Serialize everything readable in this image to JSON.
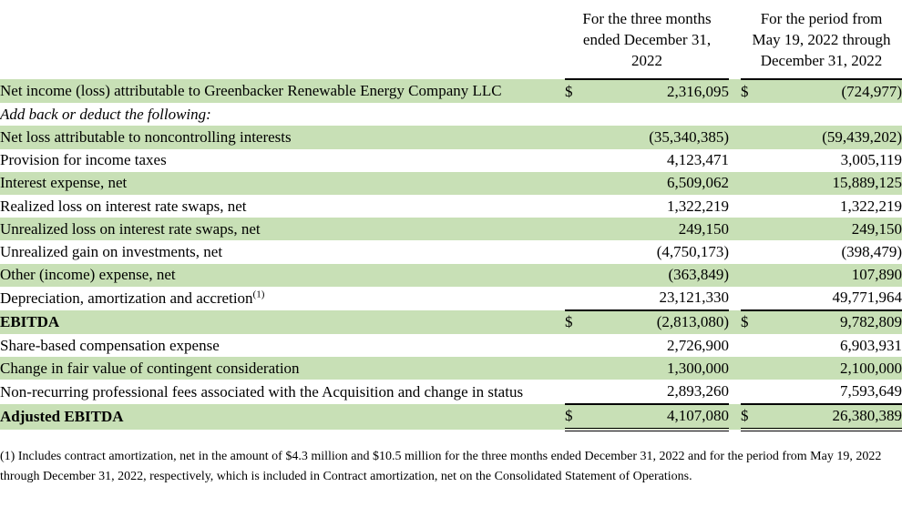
{
  "colors": {
    "row_shade": "#c8e0b6",
    "rule": "#000000",
    "text": "#000000",
    "background": "#ffffff"
  },
  "table": {
    "column_headers": [
      {
        "lines": [
          "For the three months",
          "ended December 31,",
          "2022"
        ]
      },
      {
        "lines": [
          "For the period from",
          "May 19, 2022 through",
          "December 31, 2022"
        ]
      }
    ],
    "rows": [
      {
        "label": "Net income (loss) attributable to Greenbacker Renewable Energy Company LLC",
        "dollar1": "$",
        "value1": "2,316,095",
        "dollar2": "$",
        "value2": "(724,977)",
        "shade": true
      },
      {
        "label": "Add back or deduct the following:",
        "dollar1": "",
        "value1": "",
        "dollar2": "",
        "value2": "",
        "italic": true
      },
      {
        "label": "Net loss attributable to noncontrolling interests",
        "dollar1": "",
        "value1": "(35,340,385)",
        "dollar2": "",
        "value2": "(59,439,202)",
        "shade": true
      },
      {
        "label": "Provision for income taxes",
        "dollar1": "",
        "value1": "4,123,471",
        "dollar2": "",
        "value2": "3,005,119"
      },
      {
        "label": "Interest expense, net",
        "dollar1": "",
        "value1": "6,509,062",
        "dollar2": "",
        "value2": "15,889,125",
        "shade": true
      },
      {
        "label": "Realized loss on interest rate swaps, net",
        "dollar1": "",
        "value1": "1,322,219",
        "dollar2": "",
        "value2": "1,322,219"
      },
      {
        "label": "Unrealized loss on interest rate swaps, net",
        "dollar1": "",
        "value1": "249,150",
        "dollar2": "",
        "value2": "249,150",
        "shade": true
      },
      {
        "label": "Unrealized gain on investments, net",
        "dollar1": "",
        "value1": "(4,750,173)",
        "dollar2": "",
        "value2": "(398,479)"
      },
      {
        "label": "Other (income) expense, net",
        "dollar1": "",
        "value1": "(363,849)",
        "dollar2": "",
        "value2": "107,890",
        "shade": true
      },
      {
        "label": "Depreciation, amortization and accretion",
        "sup": "(1)",
        "dollar1": "",
        "value1": "23,121,330",
        "dollar2": "",
        "value2": "49,771,964"
      },
      {
        "label": "EBITDA",
        "dollar1": "$",
        "value1": "(2,813,080)",
        "dollar2": "$",
        "value2": "9,782,809",
        "shade": true,
        "bold": true,
        "rule_top": true
      },
      {
        "label": "Share-based compensation expense",
        "dollar1": "",
        "value1": "2,726,900",
        "dollar2": "",
        "value2": "6,903,931"
      },
      {
        "label": "Change in fair value of contingent consideration",
        "dollar1": "",
        "value1": "1,300,000",
        "dollar2": "",
        "value2": "2,100,000",
        "shade": true
      },
      {
        "label": "Non-recurring professional fees associated with the Acquisition and change in status",
        "dollar1": "",
        "value1": "2,893,260",
        "dollar2": "",
        "value2": "7,593,649"
      },
      {
        "label": "Adjusted EBITDA",
        "dollar1": "$",
        "value1": "4,107,080",
        "dollar2": "$",
        "value2": "26,380,389",
        "shade": true,
        "bold": true,
        "rule_top": true,
        "rule_bottom": true
      }
    ]
  },
  "footnote": "(1) Includes contract amortization, net in the amount of $4.3 million and $10.5 million for the three months ended December 31, 2022 and for the period from May 19, 2022 through December 31, 2022, respectively, which is included in Contract amortization, net on the Consolidated Statement of Operations."
}
